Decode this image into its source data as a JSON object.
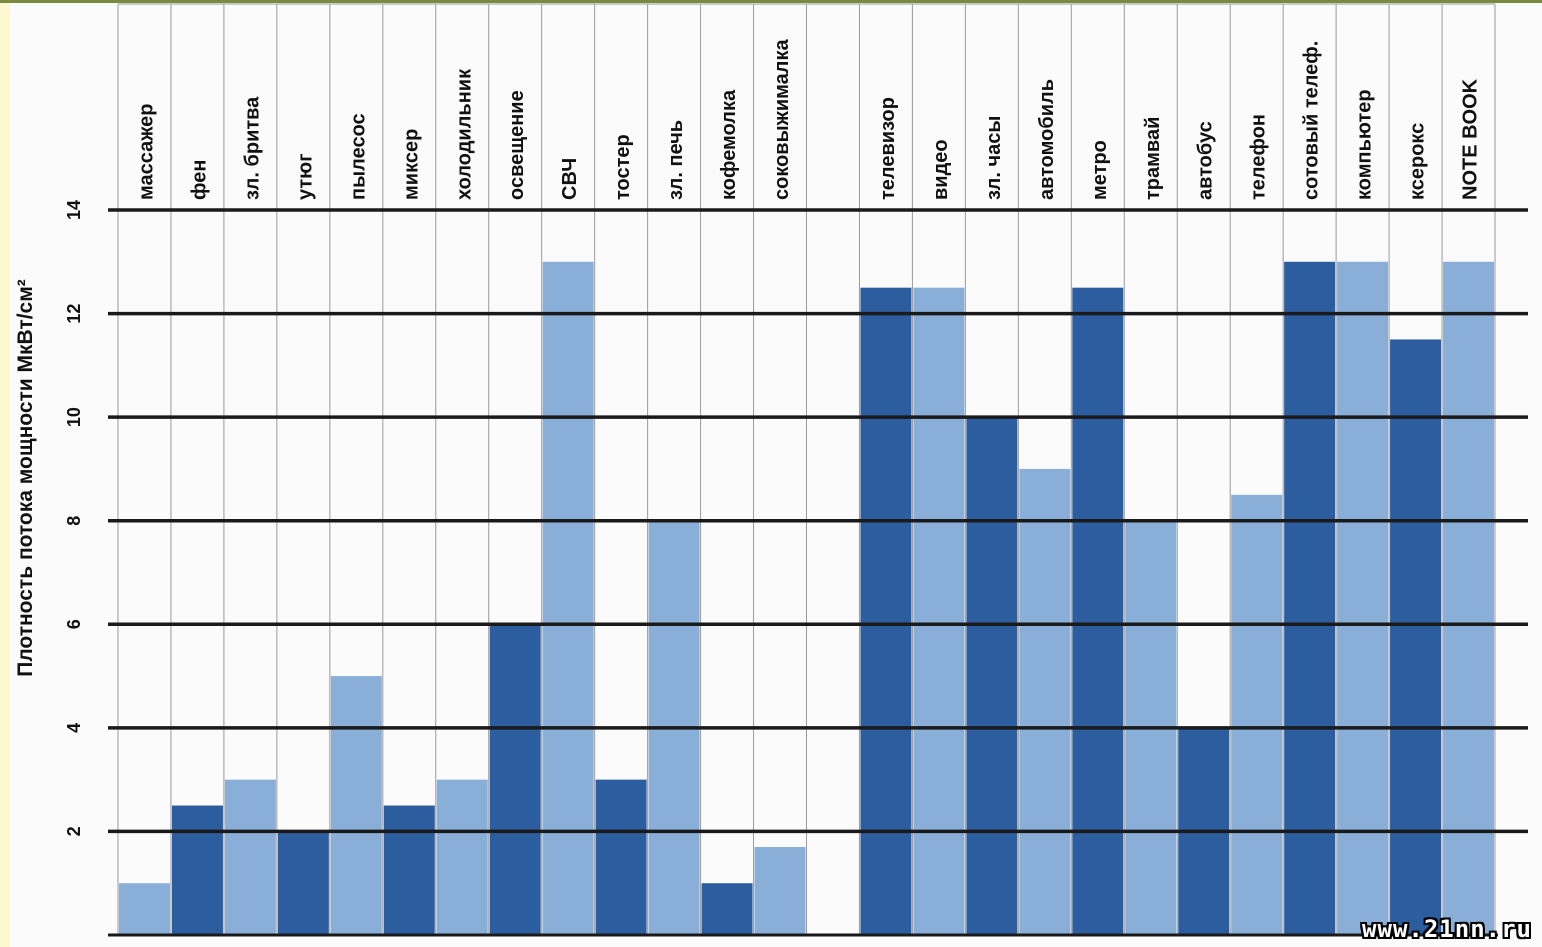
{
  "chart_data": {
    "type": "bar",
    "ylabel": "Плотность потока мощности МкВт/см²",
    "ylim": [
      0,
      14
    ],
    "yticks": [
      2,
      4,
      6,
      8,
      10,
      12,
      14
    ],
    "grid": true,
    "categories": [
      "массажер",
      "фен",
      "зл. бритва",
      "утюг",
      "пылесос",
      "миксер",
      "холодильник",
      "освещение",
      "СВЧ",
      "тостер",
      "зл. печь",
      "кофемолка",
      "соковыжималка",
      "",
      "телевизор",
      "видео",
      "зл. часы",
      "автомобиль",
      "метро",
      "трамвай",
      "автобус",
      "телефон",
      "сотовый телеф.",
      "компьютер",
      "ксерокс",
      "NOTE BOOK"
    ],
    "values": [
      1,
      2.5,
      3,
      2,
      5,
      2.5,
      3,
      6,
      13,
      3,
      8,
      1,
      1.7,
      null,
      12.5,
      12.5,
      10,
      9,
      12.5,
      8,
      4,
      8.5,
      13,
      13,
      11.5,
      13
    ],
    "shades": [
      "light",
      "dark",
      "light",
      "dark",
      "light",
      "dark",
      "light",
      "dark",
      "light",
      "dark",
      "light",
      "dark",
      "light",
      "none",
      "dark",
      "light",
      "dark",
      "light",
      "dark",
      "light",
      "dark",
      "light",
      "dark",
      "light",
      "dark",
      "light"
    ]
  },
  "colors": {
    "dark": "#2c5d9f",
    "light": "#89afd9",
    "grid_major": "#1a1a1a",
    "grid_minor": "#9a9a9a",
    "background": "#fbfbfb",
    "left_strip": "#fdf8cf"
  },
  "watermark": "www.21nn.ru"
}
